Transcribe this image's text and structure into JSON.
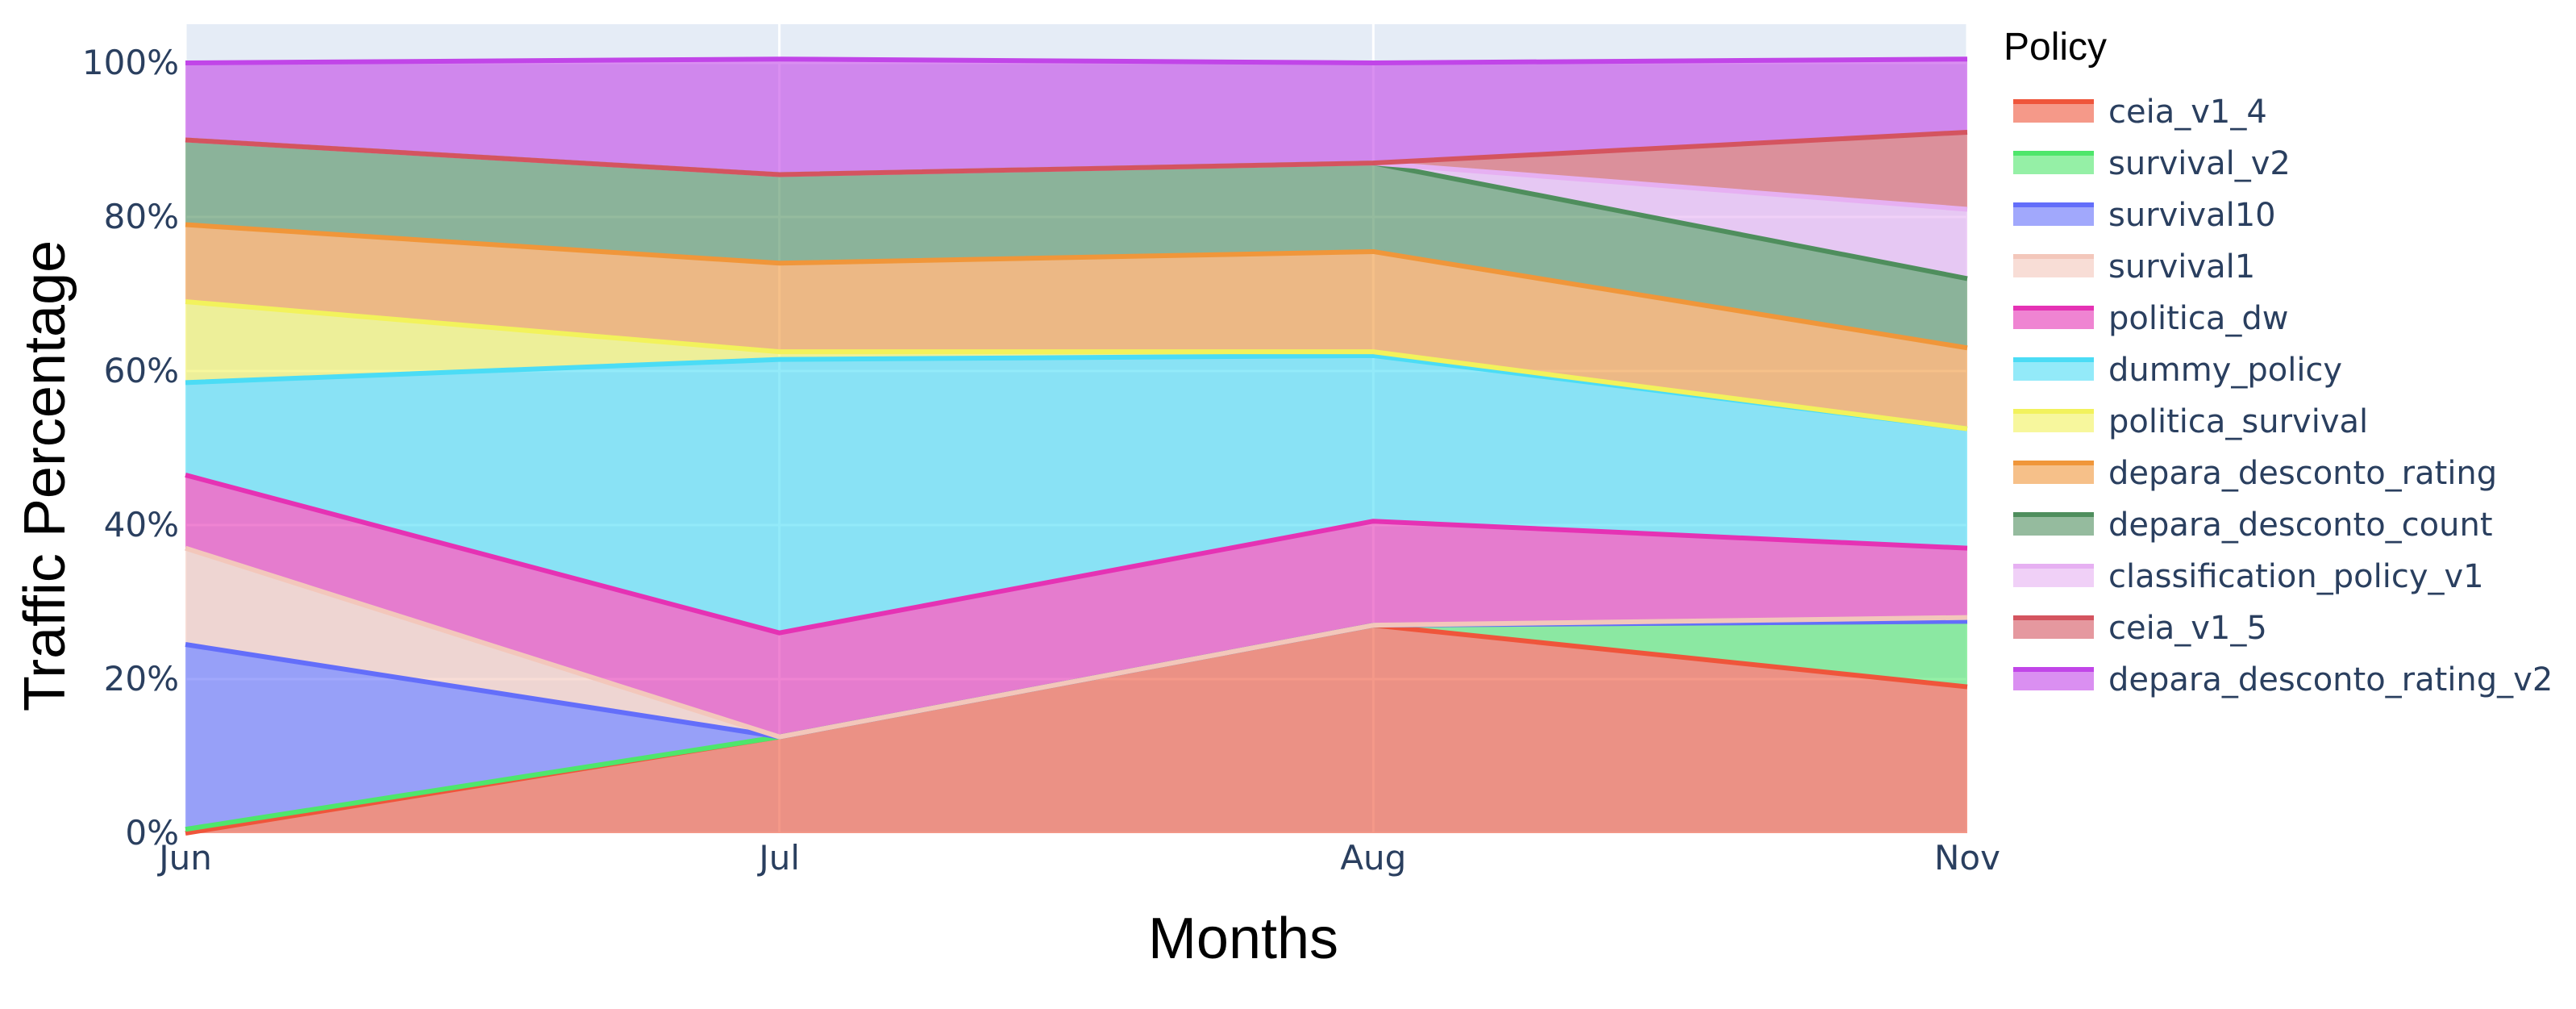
{
  "chart_data": {
    "type": "area",
    "stacked": true,
    "normalized": true,
    "title": "",
    "xlabel": "Months",
    "ylabel": "Traffic Percentage",
    "categories": [
      "Jun",
      "Jul",
      "Aug",
      "Nov"
    ],
    "yticks": [
      "0%",
      "20%",
      "40%",
      "60%",
      "80%",
      "100%"
    ],
    "ylim": [
      0,
      100
    ],
    "grid": true,
    "legend_title": "Policy",
    "legend_position": "right",
    "series": [
      {
        "name": "ceia_v1_4",
        "color": "#ef553b",
        "values": [
          0,
          12.5,
          27,
          19
        ]
      },
      {
        "name": "survival_v2",
        "color": "#4ee66b",
        "values": [
          0.5,
          0,
          0,
          8.5
        ]
      },
      {
        "name": "survival10",
        "color": "#636efa",
        "values": [
          24,
          0,
          0,
          0
        ]
      },
      {
        "name": "survival1",
        "color": "#f3c7bb",
        "values": [
          12.5,
          0,
          0,
          0.5
        ]
      },
      {
        "name": "politica_dw",
        "color": "#e532b4",
        "values": [
          9.5,
          13.5,
          13.5,
          9
        ]
      },
      {
        "name": "dummy_policy",
        "color": "#4bdcf5",
        "values": [
          12,
          35.5,
          21.5,
          15.5
        ]
      },
      {
        "name": "politica_survival",
        "color": "#f2f25c",
        "values": [
          10.5,
          1,
          0.5,
          0
        ]
      },
      {
        "name": "depara_desconto_rating",
        "color": "#f0963a",
        "values": [
          10,
          11.5,
          13,
          10.5
        ]
      },
      {
        "name": "depara_desconto_count",
        "color": "#4f8e5d",
        "values": [
          11,
          11.5,
          11.5,
          9
        ]
      },
      {
        "name": "classification_policy_v1",
        "color": "#e6b0f2",
        "values": [
          0,
          0,
          0,
          9
        ]
      },
      {
        "name": "ceia_v1_5",
        "color": "#d4545f",
        "values": [
          0,
          0,
          0,
          10
        ]
      },
      {
        "name": "depara_desconto_rating_v2",
        "color": "#c145e8",
        "values": [
          10,
          15,
          13,
          9.5
        ]
      }
    ]
  }
}
